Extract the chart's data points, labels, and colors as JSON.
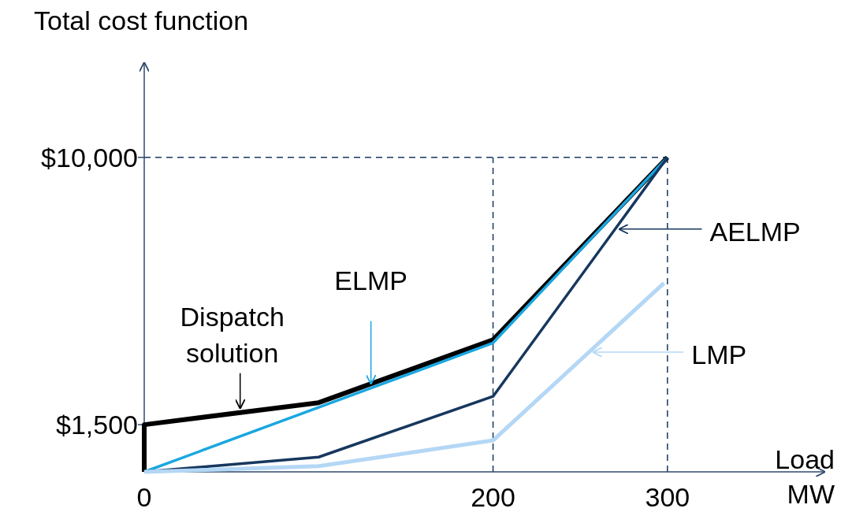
{
  "chart_data": {
    "type": "line",
    "ylabel": "Total cost function",
    "xlabel": "Load MW",
    "xlim": [
      0,
      390
    ],
    "ylim": [
      0,
      13000
    ],
    "xticks": [
      0,
      200,
      300
    ],
    "yticks": [
      {
        "value": 1500,
        "label": "$1,500"
      },
      {
        "value": 10000,
        "label": "$10,000"
      }
    ],
    "series": [
      {
        "name": "Dispatch solution",
        "color": "#000000",
        "x": [
          0,
          0,
          100,
          200,
          300
        ],
        "values": [
          0,
          1500,
          2200,
          4200,
          10000
        ]
      },
      {
        "name": "ELMP",
        "color": "#1aa7e0",
        "x": [
          0,
          200,
          300
        ],
        "values": [
          0,
          4100,
          10000
        ]
      },
      {
        "name": "AELMP",
        "color": "#17375e",
        "x": [
          0,
          100,
          200,
          300
        ],
        "values": [
          0,
          470,
          2400,
          10000
        ]
      },
      {
        "name": "LMP",
        "color": "#b4d7f5",
        "x": [
          0,
          100,
          200,
          298
        ],
        "values": [
          0,
          180,
          1000,
          6000
        ]
      }
    ],
    "ref_lines": [
      {
        "axis": "x",
        "value": 200,
        "color": "#17375e",
        "line_style": "dashed"
      },
      {
        "axis": "x",
        "value": 300,
        "color": "#17375e",
        "line_style": "dashed"
      },
      {
        "axis": "y",
        "value": 10000,
        "color": "#17375e",
        "line_style": "dashed"
      }
    ],
    "grid": false,
    "legend": "right",
    "marker": "none",
    "line_style": "solid"
  }
}
